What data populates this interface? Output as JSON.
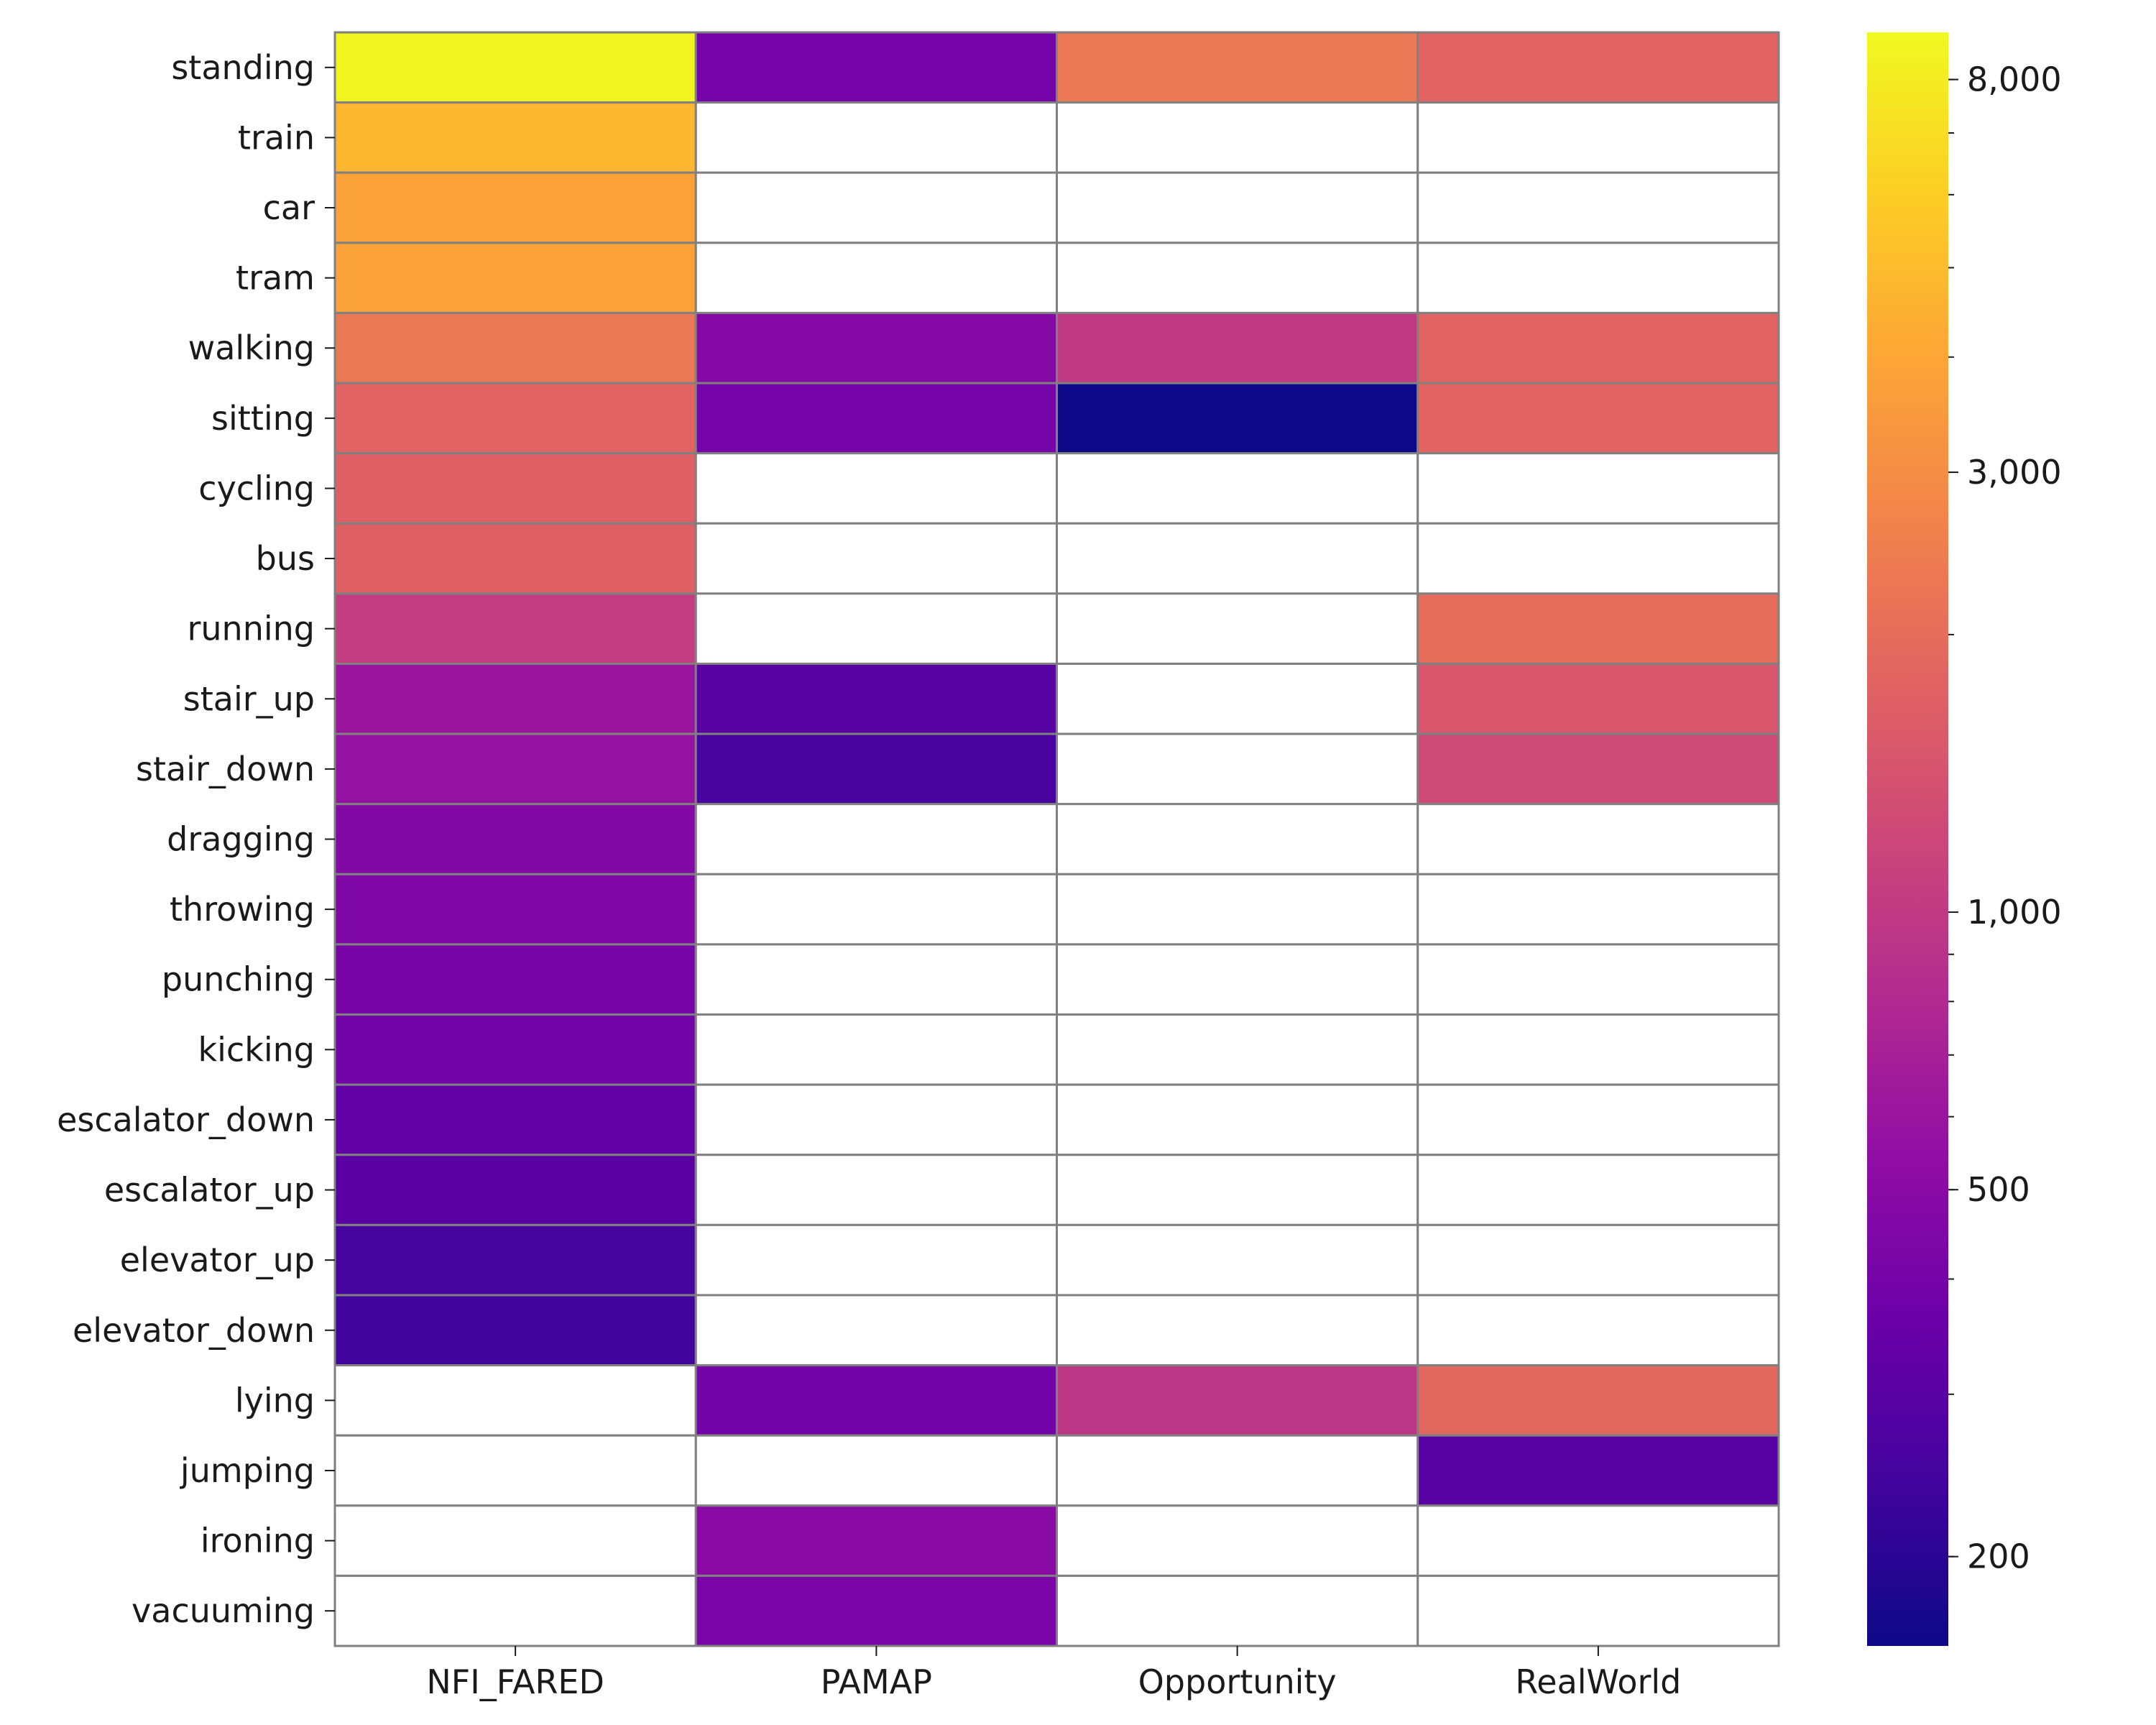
{
  "chart_data": {
    "type": "heatmap",
    "title": "",
    "xlabel": "",
    "ylabel": "",
    "columns": [
      "NFI_FARED",
      "PAMAP",
      "Opportunity",
      "RealWorld"
    ],
    "rows": [
      "standing",
      "train",
      "car",
      "tram",
      "walking",
      "sitting",
      "cycling",
      "bus",
      "running",
      "stair_up",
      "stair_down",
      "dragging",
      "throwing",
      "punching",
      "kicking",
      "escalator_down",
      "escalator_up",
      "elevator_up",
      "elevator_down",
      "lying",
      "jumping",
      "ironing",
      "vacuuming"
    ],
    "values": [
      [
        8600,
        400,
        2300,
        1800
      ],
      [
        4700,
        null,
        null,
        null
      ],
      [
        3900,
        null,
        null,
        null
      ],
      [
        3900,
        null,
        null,
        null
      ],
      [
        2300,
        480,
        1000,
        1800
      ],
      [
        1800,
        400,
        160,
        1800
      ],
      [
        1700,
        null,
        null,
        null
      ],
      [
        1700,
        null,
        null,
        null
      ],
      [
        1050,
        null,
        null,
        2000
      ],
      [
        600,
        300,
        null,
        1500
      ],
      [
        570,
        260,
        null,
        1250
      ],
      [
        470,
        null,
        null,
        null
      ],
      [
        450,
        null,
        null,
        null
      ],
      [
        410,
        null,
        null,
        null
      ],
      [
        390,
        null,
        null,
        null
      ],
      [
        330,
        null,
        null,
        null
      ],
      [
        310,
        null,
        null,
        null
      ],
      [
        250,
        null,
        null,
        null
      ],
      [
        240,
        null,
        null,
        null
      ],
      [
        null,
        390,
        950,
        1900
      ],
      [
        null,
        null,
        null,
        300
      ],
      [
        null,
        510,
        null,
        null
      ],
      [
        null,
        420,
        null,
        null
      ]
    ],
    "colormap": "plasma",
    "scale": "log",
    "vmin": 160,
    "vmax": 9000,
    "colorbar_ticks": [
      200,
      500,
      1000,
      3000,
      8000
    ],
    "colorbar_tick_labels": [
      "200",
      "500",
      "1,000",
      "3,000",
      "8,000"
    ],
    "missing_color": "#ffffff",
    "grid_color": "#808080"
  }
}
